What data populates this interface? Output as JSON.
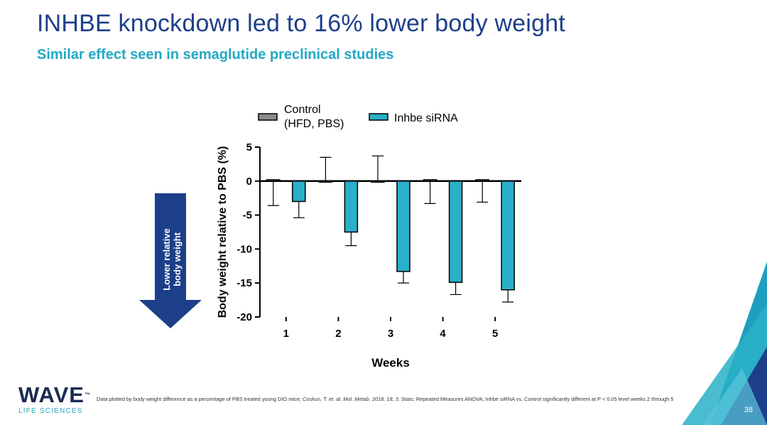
{
  "slide": {
    "title": "INHBE knockdown led to 16% lower body weight",
    "subtitle": "Similar effect seen in semaglutide preclinical studies",
    "arrow_label_line1": "Lower relative",
    "arrow_label_line2": "body weight",
    "page_number": "38",
    "colors": {
      "title": "#1d3f8a",
      "subtitle": "#23a9c4",
      "arrow": "#1d3f8a",
      "accent": "#2ab0c8"
    }
  },
  "logo": {
    "name": "WAVE",
    "tagline": "LIFE SCIENCES"
  },
  "footnote": {
    "text_before": "Data plotted by body weight difference as a percentage of PBS treated young DIO mice; ",
    "citation": "Coskun, T. et. al. Mol. Metab. 2018, 18, 3.",
    "text_after": " Stats: Repeated Measures ANOVA; Inhbe siRNA vs. Control significantly different at P < 0.05 level weeks 2 through 5"
  },
  "chart_data": {
    "type": "bar",
    "title": "",
    "xlabel": "Weeks",
    "ylabel": "Body weight relative to PBS (%)",
    "categories": [
      "1",
      "2",
      "3",
      "4",
      "5"
    ],
    "ylim": [
      -20,
      5
    ],
    "yticks": [
      5,
      0,
      -5,
      -10,
      -15,
      -20
    ],
    "grid": false,
    "legend_position": "top",
    "series": [
      {
        "name": "Control\n(HFD, PBS)",
        "name_lines": [
          "Control",
          "(HFD, PBS)"
        ],
        "color": "#8c8c8c",
        "values": [
          0.2,
          0,
          0,
          0.2,
          0.2
        ],
        "errors": [
          3.8,
          3.5,
          3.7,
          3.5,
          3.3
        ],
        "error_dir": "auto"
      },
      {
        "name": "Inhbe siRNA",
        "name_lines": [
          "Inhbe siRNA"
        ],
        "color": "#2ab0c8",
        "values": [
          -3.0,
          -7.5,
          -13.3,
          -14.9,
          -16.0
        ],
        "errors": [
          2.4,
          2.0,
          1.7,
          1.8,
          1.8
        ],
        "error_dir": "auto"
      }
    ]
  }
}
